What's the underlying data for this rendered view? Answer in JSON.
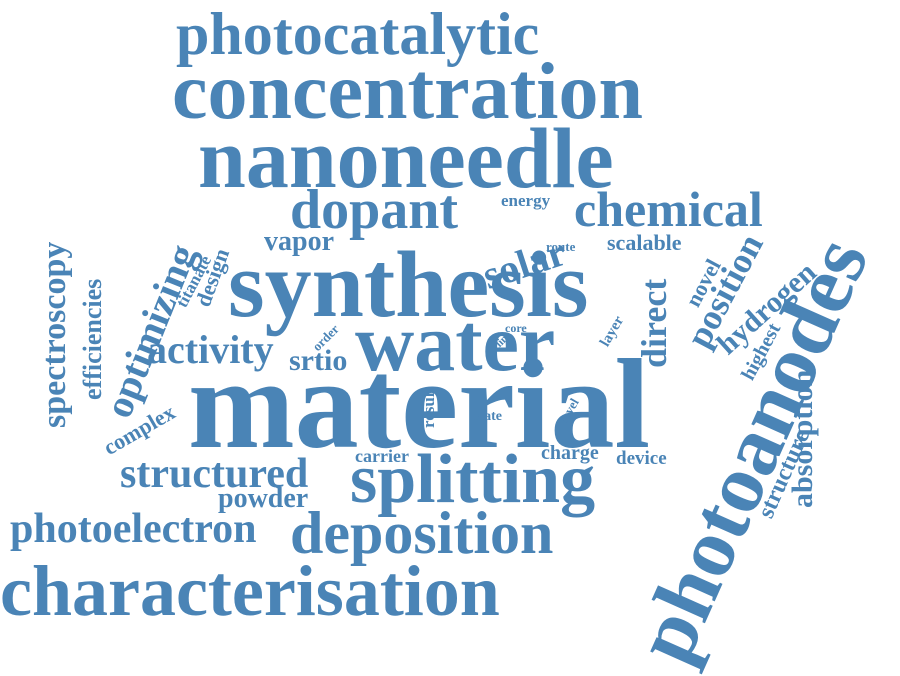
{
  "color": "#4a84b6",
  "words": {
    "photocatalytic": "photocatalytic",
    "concentration": "concentration",
    "nanoneedle": "nanoneedle",
    "dopant": "dopant",
    "chemical": "chemical",
    "energy": "energy",
    "solar": "solar",
    "vapor": "vapor",
    "route": "route",
    "scalable": "scalable",
    "synthesis": "synthesis",
    "water": "water",
    "activity": "activity",
    "srtio": "srtio",
    "material": "material",
    "structured": "structured",
    "powder": "powder",
    "splitting": "splitting",
    "photoelectron": "photoelectron",
    "deposition": "deposition",
    "characterisation": "characterisation",
    "carrier": "carrier",
    "charge": "charge",
    "device": "device",
    "complex": "complex",
    "state": "state",
    "spectroscopy": "spectroscopy",
    "efficiencies": "efficiencies",
    "optimizing": "optimizing",
    "titanate": "titanate",
    "design": "design",
    "order": "order",
    "line": "line",
    "core": "core",
    "result": "result",
    "level": "level",
    "layer": "layer",
    "direct": "direct",
    "novel": "novel",
    "position": "position",
    "hydrogen": "hydrogen",
    "highest": "highest",
    "photoanodes": "photoanodes",
    "structure": "structure",
    "absorption": "absorption"
  }
}
